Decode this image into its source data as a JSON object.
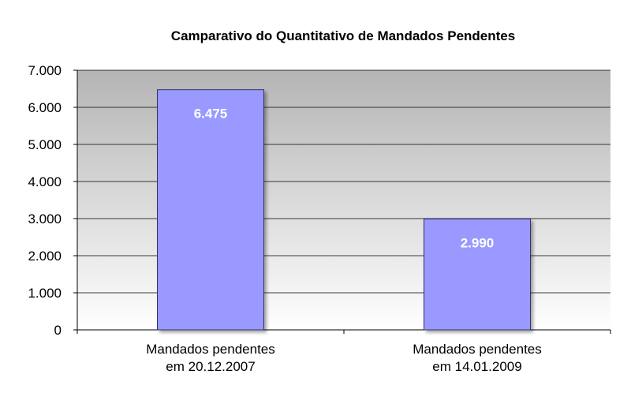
{
  "chart_data": {
    "type": "bar",
    "title": "Camparativo do Quantitativo de Mandados Pendentes",
    "categories": [
      [
        "Mandados pendentes",
        "em 20.12.2007"
      ],
      [
        "Mandados pendentes",
        "em 14.01.2009"
      ]
    ],
    "values": [
      6475,
      2990
    ],
    "value_labels": [
      "6.475",
      "2.990"
    ],
    "ylim": [
      0,
      7000
    ],
    "yticks": [
      0,
      1000,
      2000,
      3000,
      4000,
      5000,
      6000,
      7000
    ],
    "ytick_labels": [
      "0",
      "1.000",
      "2.000",
      "3.000",
      "4.000",
      "5.000",
      "6.000",
      "7.000"
    ],
    "grid": true,
    "colors": {
      "bar_fill": "#9999ff",
      "bar_stroke": "#333366",
      "plot_bg_top": "#b4b4b4",
      "plot_bg_bottom": "#ffffff",
      "gridline": "#000000",
      "value_label": "#ffffff"
    }
  }
}
